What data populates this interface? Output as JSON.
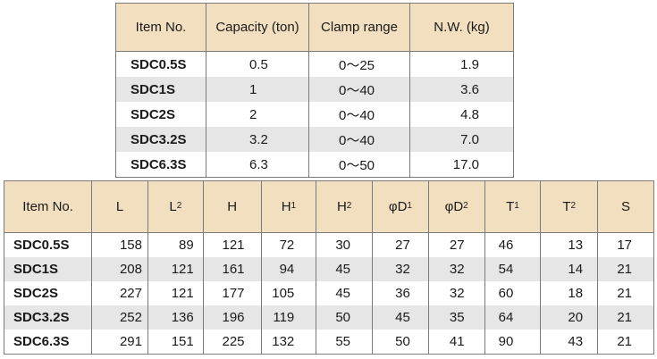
{
  "top_table": {
    "headers": [
      "Item No.",
      "Capacity (ton)",
      "Clamp range",
      "N.W. (kg)"
    ],
    "rows": [
      {
        "item": "SDC0.5S",
        "capacity": "0.5",
        "clamp": "0～25",
        "nw": "1.9"
      },
      {
        "item": "SDC1S",
        "capacity": "1",
        "clamp": "0～40",
        "nw": "3.6"
      },
      {
        "item": "SDC2S",
        "capacity": "2",
        "clamp": "0～40",
        "nw": "4.8"
      },
      {
        "item": "SDC3.2S",
        "capacity": "3.2",
        "clamp": "0～40",
        "nw": "7.0"
      },
      {
        "item": "SDC6.3S",
        "capacity": "6.3",
        "clamp": "0～50",
        "nw": "17.0"
      }
    ]
  },
  "bottom_table": {
    "headers": {
      "item": "Item No.",
      "l": "L",
      "l2": "L",
      "l2_sub": "2",
      "h": "H",
      "h1": "H",
      "h1_sub": "1",
      "h2": "H",
      "h2_sub": "2",
      "d1": "φD",
      "d1_sub": "1",
      "d2": "φD",
      "d2_sub": "2",
      "t1": "T",
      "t1_sub": "1",
      "t2": "T",
      "t2_sub": "2",
      "s": "S"
    },
    "rows": [
      {
        "item": "SDC0.5S",
        "l": "158",
        "l2": "89",
        "h": "121",
        "h1": "72",
        "h2": "30",
        "d1": "27",
        "d2": "27",
        "t1": "46",
        "t2": "13",
        "s": "17"
      },
      {
        "item": "SDC1S",
        "l": "208",
        "l2": "121",
        "h": "161",
        "h1": "94",
        "h2": "45",
        "d1": "32",
        "d2": "32",
        "t1": "54",
        "t2": "14",
        "s": "21"
      },
      {
        "item": "SDC2S",
        "l": "227",
        "l2": "121",
        "h": "177",
        "h1": "105",
        "h2": "45",
        "d1": "36",
        "d2": "32",
        "t1": "60",
        "t2": "18",
        "s": "21"
      },
      {
        "item": "SDC3.2S",
        "l": "252",
        "l2": "136",
        "h": "196",
        "h1": "119",
        "h2": "50",
        "d1": "45",
        "d2": "35",
        "t1": "64",
        "t2": "20",
        "s": "21"
      },
      {
        "item": "SDC6.3S",
        "l": "291",
        "l2": "151",
        "h": "225",
        "h1": "132",
        "h2": "55",
        "d1": "50",
        "d2": "41",
        "t1": "90",
        "t2": "43",
        "s": "21"
      }
    ]
  }
}
